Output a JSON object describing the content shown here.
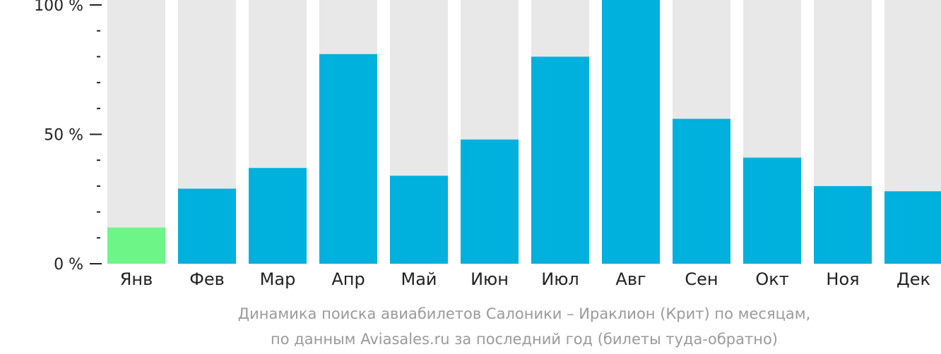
{
  "chart_data": {
    "type": "bar",
    "categories": [
      "Янв",
      "Фев",
      "Мар",
      "Апр",
      "Май",
      "Июн",
      "Июл",
      "Авг",
      "Сен",
      "Окт",
      "Ноя",
      "Дек"
    ],
    "values": [
      14,
      29,
      37,
      81,
      34,
      48,
      80,
      100,
      56,
      41,
      30,
      28
    ],
    "ylim": [
      0,
      100
    ],
    "y_tick_labels": [
      {
        "value": 0,
        "label": "0 %"
      },
      {
        "value": 50,
        "label": "50 %"
      },
      {
        "value": 100,
        "label": "100 %"
      }
    ],
    "y_minor_ticks": [
      10,
      20,
      30,
      40,
      60,
      70,
      80,
      90
    ],
    "caption_lines": [
      "Динамика поиска авиабилетов Салоники – Ираклион (Крит) по месяцам,",
      "по данным Aviasales.ru за последний год (билеты туда-обратно)"
    ],
    "highlight_index": 0,
    "colors": {
      "bar": "#00b0dd",
      "highlight": "#6ef587",
      "track": "#e8e8e8",
      "axis": "#222222",
      "caption": "#9a9a9a"
    }
  }
}
